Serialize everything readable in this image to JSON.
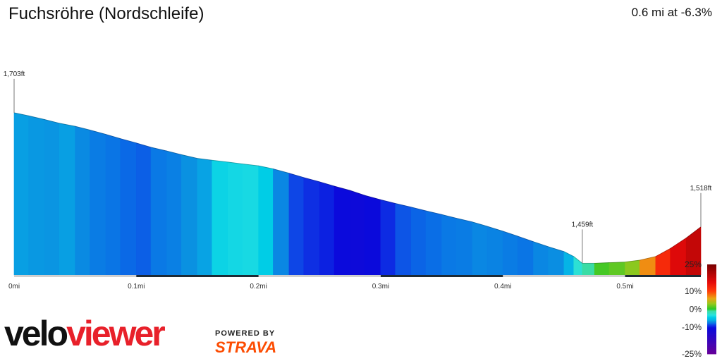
{
  "header": {
    "title": "Fuchsröhre (Nordschleife)",
    "stats": "0.6 mi at -6.3%"
  },
  "chart_data": {
    "type": "area",
    "x_unit": "mi",
    "y_unit": "ft",
    "x": [
      0,
      0.012,
      0.025,
      0.037,
      0.05,
      0.062,
      0.075,
      0.087,
      0.1,
      0.112,
      0.125,
      0.137,
      0.15,
      0.162,
      0.175,
      0.187,
      0.2,
      0.212,
      0.225,
      0.237,
      0.25,
      0.262,
      0.275,
      0.287,
      0.3,
      0.312,
      0.325,
      0.337,
      0.35,
      0.362,
      0.375,
      0.387,
      0.4,
      0.412,
      0.425,
      0.437,
      0.45,
      0.458,
      0.465,
      0.475,
      0.487,
      0.5,
      0.512,
      0.525,
      0.537,
      0.55,
      0.562
    ],
    "y": [
      1703,
      1698,
      1692,
      1686,
      1681,
      1675,
      1668,
      1661,
      1654,
      1647,
      1641,
      1635,
      1629,
      1626,
      1623,
      1620,
      1617,
      1612,
      1605,
      1598,
      1591,
      1584,
      1577,
      1569,
      1562,
      1556,
      1550,
      1544,
      1538,
      1532,
      1526,
      1519,
      1511,
      1503,
      1494,
      1486,
      1478,
      1470,
      1459,
      1459,
      1460,
      1461,
      1464,
      1470,
      1483,
      1500,
      1518
    ],
    "grade_pct": [
      -6.6,
      -6.8,
      -6.9,
      -6.6,
      -7.2,
      -7.6,
      -7.8,
      -8.1,
      -8.3,
      -7.7,
      -7.5,
      -7.0,
      -6.5,
      -4.2,
      -4.0,
      -3.9,
      -4.5,
      -7.3,
      -8.8,
      -9.4,
      -9.8,
      -10.6,
      -11.2,
      -10.7,
      -9.5,
      -8.5,
      -8.2,
      -8.0,
      -7.7,
      -7.6,
      -7.3,
      -7.4,
      -7.6,
      -7.8,
      -7.3,
      -7.1,
      -6.0,
      -3.0,
      -1.2,
      0.8,
      1.5,
      2.7,
      6.9,
      11.8,
      15.7,
      18.2,
      21.0
    ],
    "xlim": [
      0,
      0.562
    ],
    "ylim": [
      1440,
      1760
    ],
    "x_ticks": [
      "0mi",
      "0.1mi",
      "0.2mi",
      "0.3mi",
      "0.4mi",
      "0.5mi"
    ],
    "x_tick_values": [
      0,
      0.1,
      0.2,
      0.3,
      0.4,
      0.5
    ],
    "annotations": [
      {
        "x": 0,
        "y": 1703,
        "label": "1,703ft"
      },
      {
        "x": 0.465,
        "y": 1459,
        "label": "1,459ft"
      },
      {
        "x": 0.562,
        "y": 1518,
        "label": "1,518ft"
      }
    ],
    "color_scale": {
      "labels": [
        "25%",
        "10%",
        "0%",
        "-10%",
        "-25%"
      ],
      "values": [
        25,
        10,
        0,
        -10,
        -25
      ]
    },
    "grid": false
  },
  "branding": {
    "logo_part1": "velo",
    "logo_part2": "viewer",
    "powered_by": "POWERED BY",
    "partner": "STRAVA"
  }
}
